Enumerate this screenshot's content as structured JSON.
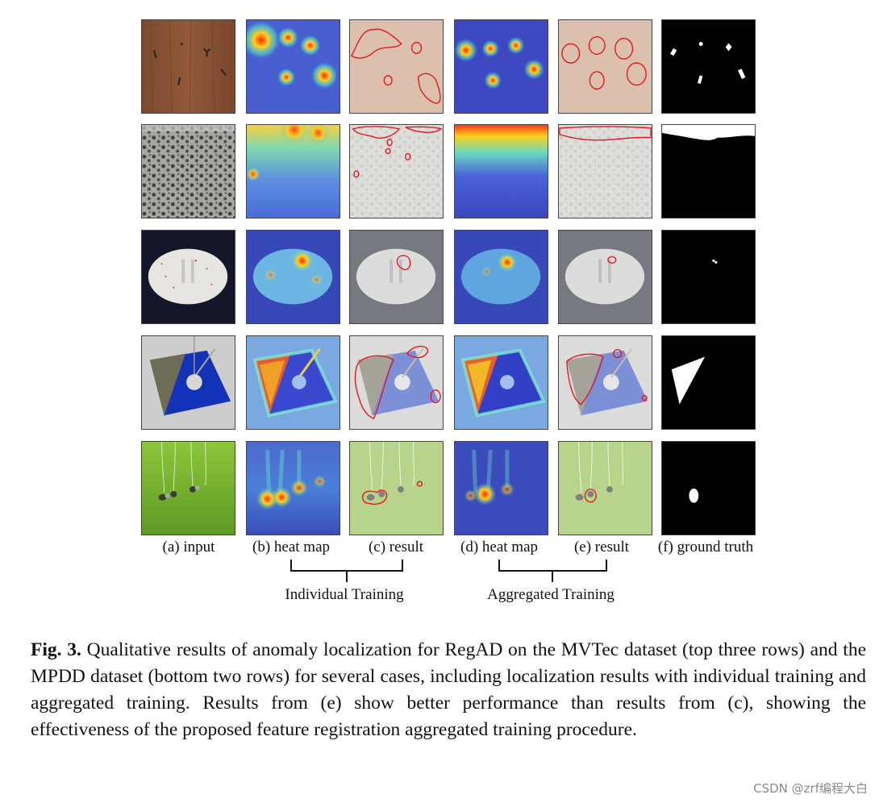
{
  "columns": [
    {
      "id": "a",
      "label": "(a) input"
    },
    {
      "id": "b",
      "label": "(b) heat map"
    },
    {
      "id": "c",
      "label": "(c) result"
    },
    {
      "id": "d",
      "label": "(d) heat map"
    },
    {
      "id": "e",
      "label": "(e) result"
    },
    {
      "id": "f",
      "label": "(f) ground truth"
    }
  ],
  "groups": {
    "individual": "Individual Training",
    "aggregated": "Aggregated Training"
  },
  "caption": {
    "label": "Fig. 3.",
    "text": "Qualitative results of anomaly localization for RegAD on the MVTec dataset (top three rows) and the MPDD dataset (bottom two rows) for several cases, including localization results with individual training and aggregated training. Results from (e) show better performance than results from (c), showing the effectiveness of the proposed feature registration aggregated training procedure."
  },
  "rows": [
    {
      "sample": "wood"
    },
    {
      "sample": "tile"
    },
    {
      "sample": "pill"
    },
    {
      "sample": "metal-plate"
    },
    {
      "sample": "tubes"
    }
  ],
  "colors": {
    "heat_low": "#3f55d8",
    "heat_high": "#ff3010",
    "contour": "#e8141c"
  },
  "watermark": "CSDN @zrf编程大白"
}
